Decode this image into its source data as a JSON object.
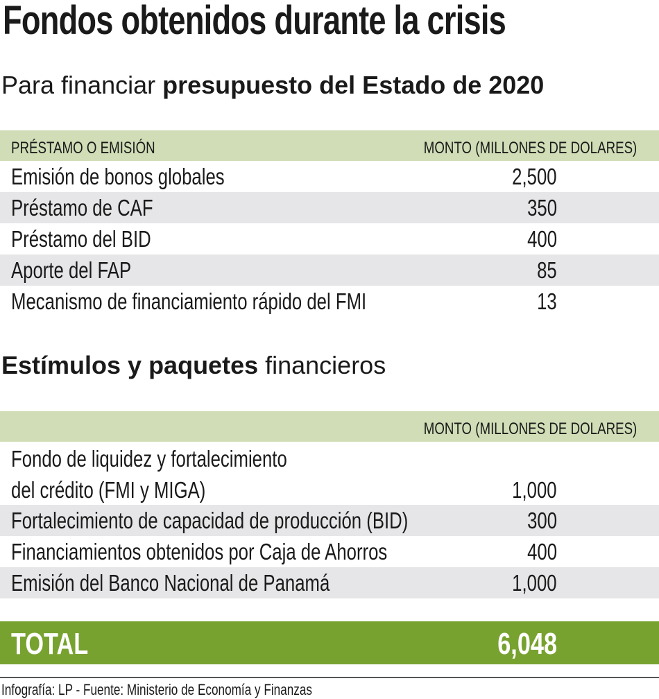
{
  "title": "Fondos obtenidos durante la crisis",
  "section1": {
    "heading_normal": "Para financiar ",
    "heading_bold": "presupuesto del Estado de 2020",
    "col_label": "PRÉSTAMO O EMISIÓN",
    "col_amount": "MONTO (MILLONES DE DOLARES)",
    "rows": [
      {
        "label": "Emisión de bonos globales",
        "amount": "2,500"
      },
      {
        "label": "Préstamo de CAF",
        "amount": "350"
      },
      {
        "label": "Préstamo del BID",
        "amount": "400"
      },
      {
        "label": "Aporte del FAP",
        "amount": "85"
      },
      {
        "label": "Mecanismo de financiamiento rápido del FMI",
        "amount": "13"
      }
    ]
  },
  "section2": {
    "heading_bold": "Estímulos y paquetes",
    "heading_normal": " financieros",
    "col_amount": "MONTO (MILLONES DE DOLARES)",
    "rows": [
      {
        "label_line1": "Fondo de liquidez y fortalecimiento",
        "label": "del crédito (FMI y MIGA)",
        "amount": "1,000"
      },
      {
        "label": "Fortalecimiento de capacidad de producción (BID)",
        "amount": "300"
      },
      {
        "label": "Financiamientos obtenidos por Caja de Ahorros",
        "amount": "400"
      },
      {
        "label": "Emisión del Banco Nacional de Panamá",
        "amount": "1,000"
      }
    ]
  },
  "total": {
    "label": "TOTAL",
    "amount": "6,048"
  },
  "footer": "Infografía: LP - Fuente: Ministerio de Economía y Finanzas",
  "colors": {
    "header_band": "#d0ddb6",
    "alt_row": "#e6e6e8",
    "total_band": "#78a22f"
  }
}
